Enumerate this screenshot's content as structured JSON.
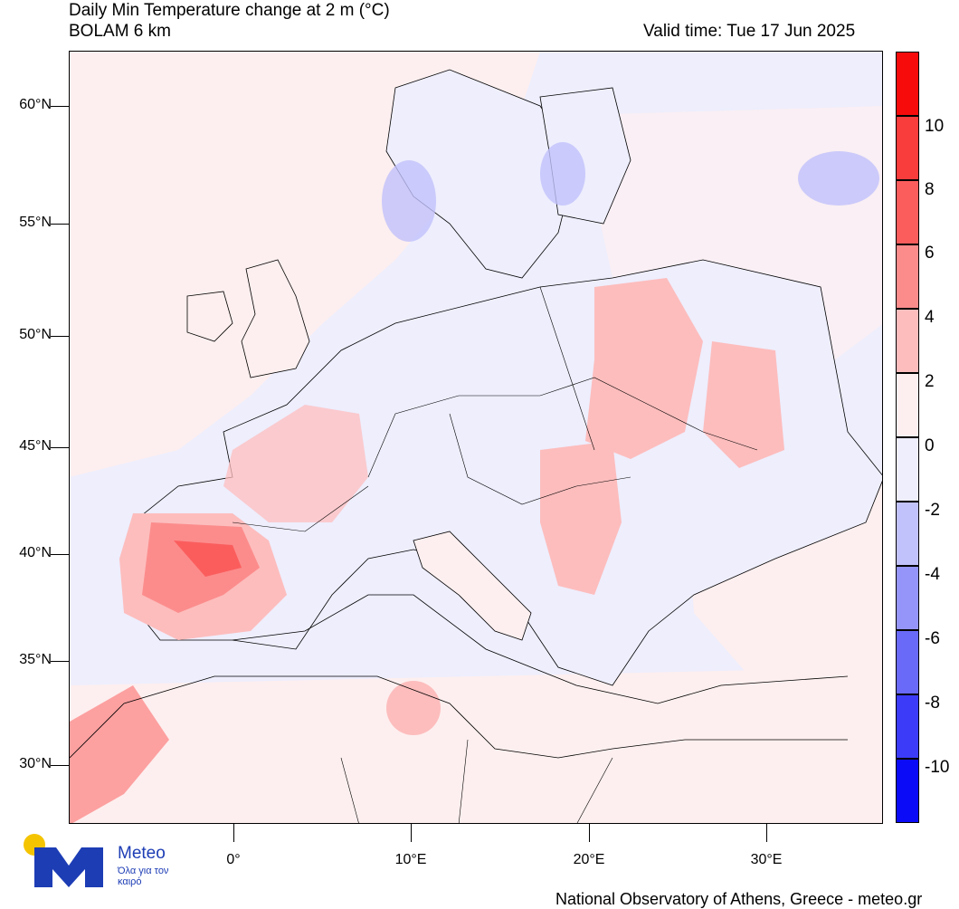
{
  "header": {
    "title_line1": "Daily Min Temperature change at 2 m (°C)",
    "title_line2": "BOLAM 6 km",
    "valid_time": "Valid time: Tue 17 Jun 2025"
  },
  "axes": {
    "lat_labels": [
      "60°N",
      "55°N",
      "50°N",
      "45°N",
      "40°N",
      "35°N",
      "30°N"
    ],
    "lon_labels": [
      "0°",
      "10°E",
      "20°E",
      "30°E"
    ]
  },
  "colorbar": {
    "labels": [
      "10",
      "8",
      "6",
      "4",
      "2",
      "0",
      "-2",
      "-4",
      "-6",
      "-8",
      "-10"
    ],
    "colors": [
      "#f70b0b",
      "#f93c3c",
      "#fb5d5d",
      "#fc8c8c",
      "#fdbdbd",
      "#fdefef",
      "#eeeefd",
      "#c1c1fb",
      "#9595f9",
      "#6a6af8",
      "#3c3cf8",
      "#0b0bf7"
    ]
  },
  "branding": {
    "logo_name": "Meteo",
    "logo_tagline": "Όλα για τον καιρό",
    "footer": "National Observatory of Athens, Greece - meteo.gr"
  }
}
